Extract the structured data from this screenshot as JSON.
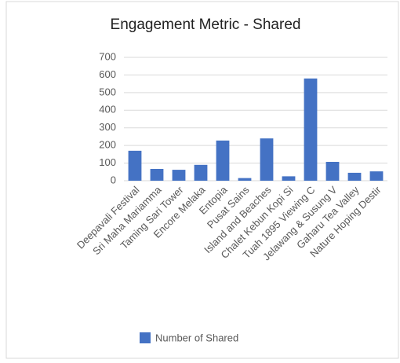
{
  "chart_data": {
    "type": "bar",
    "title": "Engagement Metric - Shared",
    "categories": [
      "Deepavali Festival",
      "Sri Maha Mariamma",
      "Taming Sari Tower",
      "Encore Melaka",
      "Entopia",
      "Pusat Sains",
      "Island and Beaches",
      "Chalet Kebun Kopi Si",
      "Tuah 1895 Viewing C",
      "Jelawang & Susung V",
      "Gaharu Tea Valley",
      "Nature Hoping Destir"
    ],
    "series": [
      {
        "name": "Number of Shared",
        "color": "#4472c4",
        "values": [
          170,
          67,
          62,
          90,
          228,
          15,
          240,
          25,
          580,
          107,
          45,
          53
        ]
      }
    ],
    "ylim": [
      0,
      700
    ],
    "yticks": [
      0,
      100,
      200,
      300,
      400,
      500,
      600,
      700
    ],
    "grid": true,
    "legend": "bottom"
  }
}
